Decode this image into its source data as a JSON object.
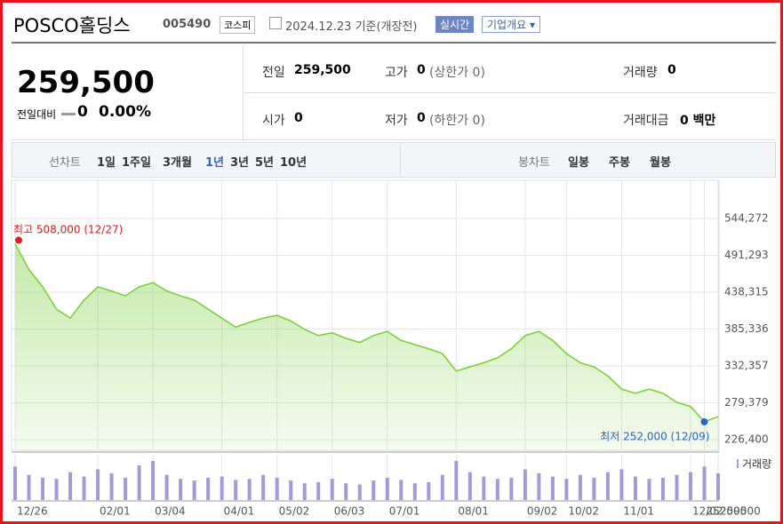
{
  "header": {
    "title": "POSCO홀딩스",
    "code": "005490",
    "market": "코스피",
    "date": "2024.12.23 기준(개장전)",
    "realtime": "실시간",
    "company_info": "기업개요 ▾"
  },
  "quote": {
    "price": "259,500",
    "change_label": "전일대비",
    "change": "0",
    "change_rate": "0.00%",
    "items": [
      {
        "label": "전일",
        "value": "259,500"
      },
      {
        "label": "고가",
        "value": "0",
        "extra": "(상한가 0)"
      },
      {
        "label": "거래량",
        "value": "0"
      },
      {
        "label": "시가",
        "value": "0"
      },
      {
        "label": "저가",
        "value": "0",
        "extra": "(하한가 0)"
      },
      {
        "label": "거래대금",
        "value": "0 백만"
      }
    ]
  },
  "tabs": {
    "line_label": "선차트",
    "periods": [
      "1일",
      "1주일",
      "3개월",
      "1년",
      "3년",
      "5년",
      "10년"
    ],
    "selected": 3,
    "candle_label": "봉차트",
    "candles": [
      "일봉",
      "주봉",
      "월봉"
    ]
  },
  "chart_data": {
    "type": "line",
    "color": "#7ccf3e",
    "categories": [
      "12/26",
      null,
      null,
      null,
      null,
      null,
      "02/01",
      null,
      null,
      null,
      "03/04",
      null,
      null,
      null,
      null,
      "04/01",
      null,
      null,
      null,
      "05/02",
      null,
      null,
      null,
      "06/03",
      null,
      null,
      null,
      "07/01",
      null,
      null,
      null,
      null,
      "08/01",
      null,
      null,
      null,
      null,
      "09/02",
      null,
      null,
      "10/02",
      null,
      null,
      null,
      "11/01",
      null,
      null,
      null,
      null,
      "12/02",
      252000,
      259500
    ],
    "values": [
      508000,
      471000,
      446000,
      414000,
      401000,
      427000,
      446000,
      440000,
      433000,
      446000,
      452000,
      440000,
      433000,
      427000,
      414000,
      401000,
      388000,
      395000,
      401000,
      405000,
      397000,
      385000,
      376000,
      380000,
      372000,
      366000,
      376000,
      382000,
      369000,
      363000,
      357000,
      350000,
      325000,
      331000,
      337000,
      344000,
      357000,
      376000,
      382000,
      369000,
      350000,
      337000,
      331000,
      318000,
      299000,
      293000,
      299000,
      293000,
      280000,
      274000,
      252000,
      259500
    ],
    "ylim": [
      226400,
      544272
    ],
    "yticks": [
      {
        "value": 226400,
        "label": "226,400"
      },
      {
        "value": 279379,
        "label": "279,379"
      },
      {
        "value": 332357,
        "label": "332,357"
      },
      {
        "value": 385336,
        "label": "385,336"
      },
      {
        "value": 438315,
        "label": "438,315"
      },
      {
        "value": 491293,
        "label": "491,293"
      },
      {
        "value": 544272,
        "label": "544,272"
      }
    ],
    "high_label": "최고 508,000 (12/27)",
    "low_label": "최저 252,000 (12/09)",
    "volume": {
      "name": "거래량",
      "color": "#a59ad6",
      "values": [
        60,
        45,
        40,
        38,
        50,
        42,
        55,
        48,
        40,
        62,
        70,
        45,
        38,
        35,
        40,
        42,
        36,
        38,
        45,
        40,
        35,
        30,
        32,
        38,
        30,
        28,
        35,
        40,
        36,
        30,
        32,
        45,
        70,
        50,
        42,
        38,
        40,
        55,
        48,
        42,
        38,
        45,
        40,
        50,
        55,
        42,
        38,
        40,
        45,
        50,
        60,
        48
      ]
    },
    "grid": true
  }
}
